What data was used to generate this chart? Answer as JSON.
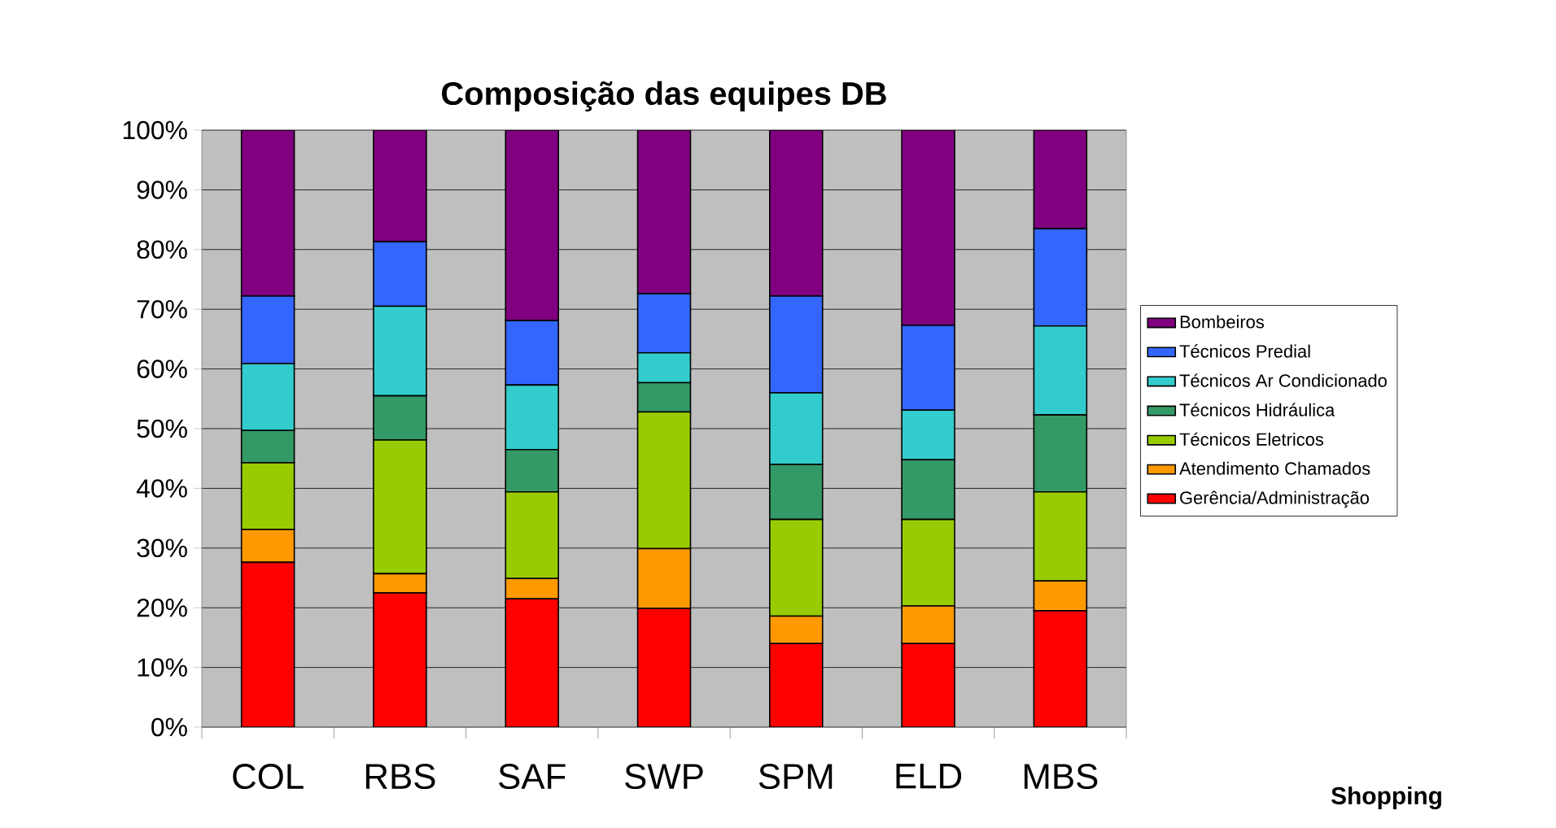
{
  "chart_data": {
    "type": "bar",
    "stacked": true,
    "title": "Composição das equipes DB",
    "annotations": [
      "Shopping"
    ],
    "categories": [
      "COL",
      "RBS",
      "SAF",
      "SWP",
      "SPM",
      "ELD",
      "MBS"
    ],
    "ylim": [
      0,
      100
    ],
    "yticks": [
      {
        "value": 0,
        "label": "0%"
      },
      {
        "value": 10,
        "label": "10%"
      },
      {
        "value": 20,
        "label": "20%"
      },
      {
        "value": 30,
        "label": "30%"
      },
      {
        "value": 40,
        "label": "40%"
      },
      {
        "value": 50,
        "label": "50%"
      },
      {
        "value": 60,
        "label": "60%"
      },
      {
        "value": 70,
        "label": "70%"
      },
      {
        "value": 80,
        "label": "80%"
      },
      {
        "value": 90,
        "label": "90%"
      },
      {
        "value": 100,
        "label": "100%"
      }
    ],
    "grid": "y",
    "legend": "right",
    "series": [
      {
        "name": "Gerência/Administração",
        "color": "#ff0000",
        "values": [
          27.6,
          22.5,
          21.5,
          19.9,
          14.0,
          14.0,
          19.5
        ]
      },
      {
        "name": "Atendimento Chamados",
        "color": "#ff9900",
        "values": [
          5.5,
          3.2,
          3.4,
          10.0,
          4.6,
          6.3,
          5.0
        ]
      },
      {
        "name": "Técnicos Eletricos",
        "color": "#99cc00",
        "values": [
          11.2,
          22.4,
          14.5,
          22.9,
          16.2,
          14.5,
          14.9
        ]
      },
      {
        "name": "Técnicos Hidráulica",
        "color": "#339966",
        "values": [
          5.4,
          7.4,
          7.1,
          4.9,
          9.2,
          10.0,
          12.9
        ]
      },
      {
        "name": "Técnicos Ar Condicionado",
        "color": "#33cccc",
        "values": [
          11.2,
          15.0,
          10.8,
          5.0,
          12.0,
          8.3,
          14.9
        ]
      },
      {
        "name": "Técnicos Predial",
        "color": "#3366ff",
        "values": [
          11.3,
          10.8,
          10.8,
          9.9,
          16.2,
          14.2,
          16.3
        ]
      },
      {
        "name": "Bombeiros",
        "color": "#800080",
        "values": [
          27.8,
          18.7,
          31.9,
          27.4,
          27.8,
          32.7,
          16.5
        ]
      }
    ]
  }
}
